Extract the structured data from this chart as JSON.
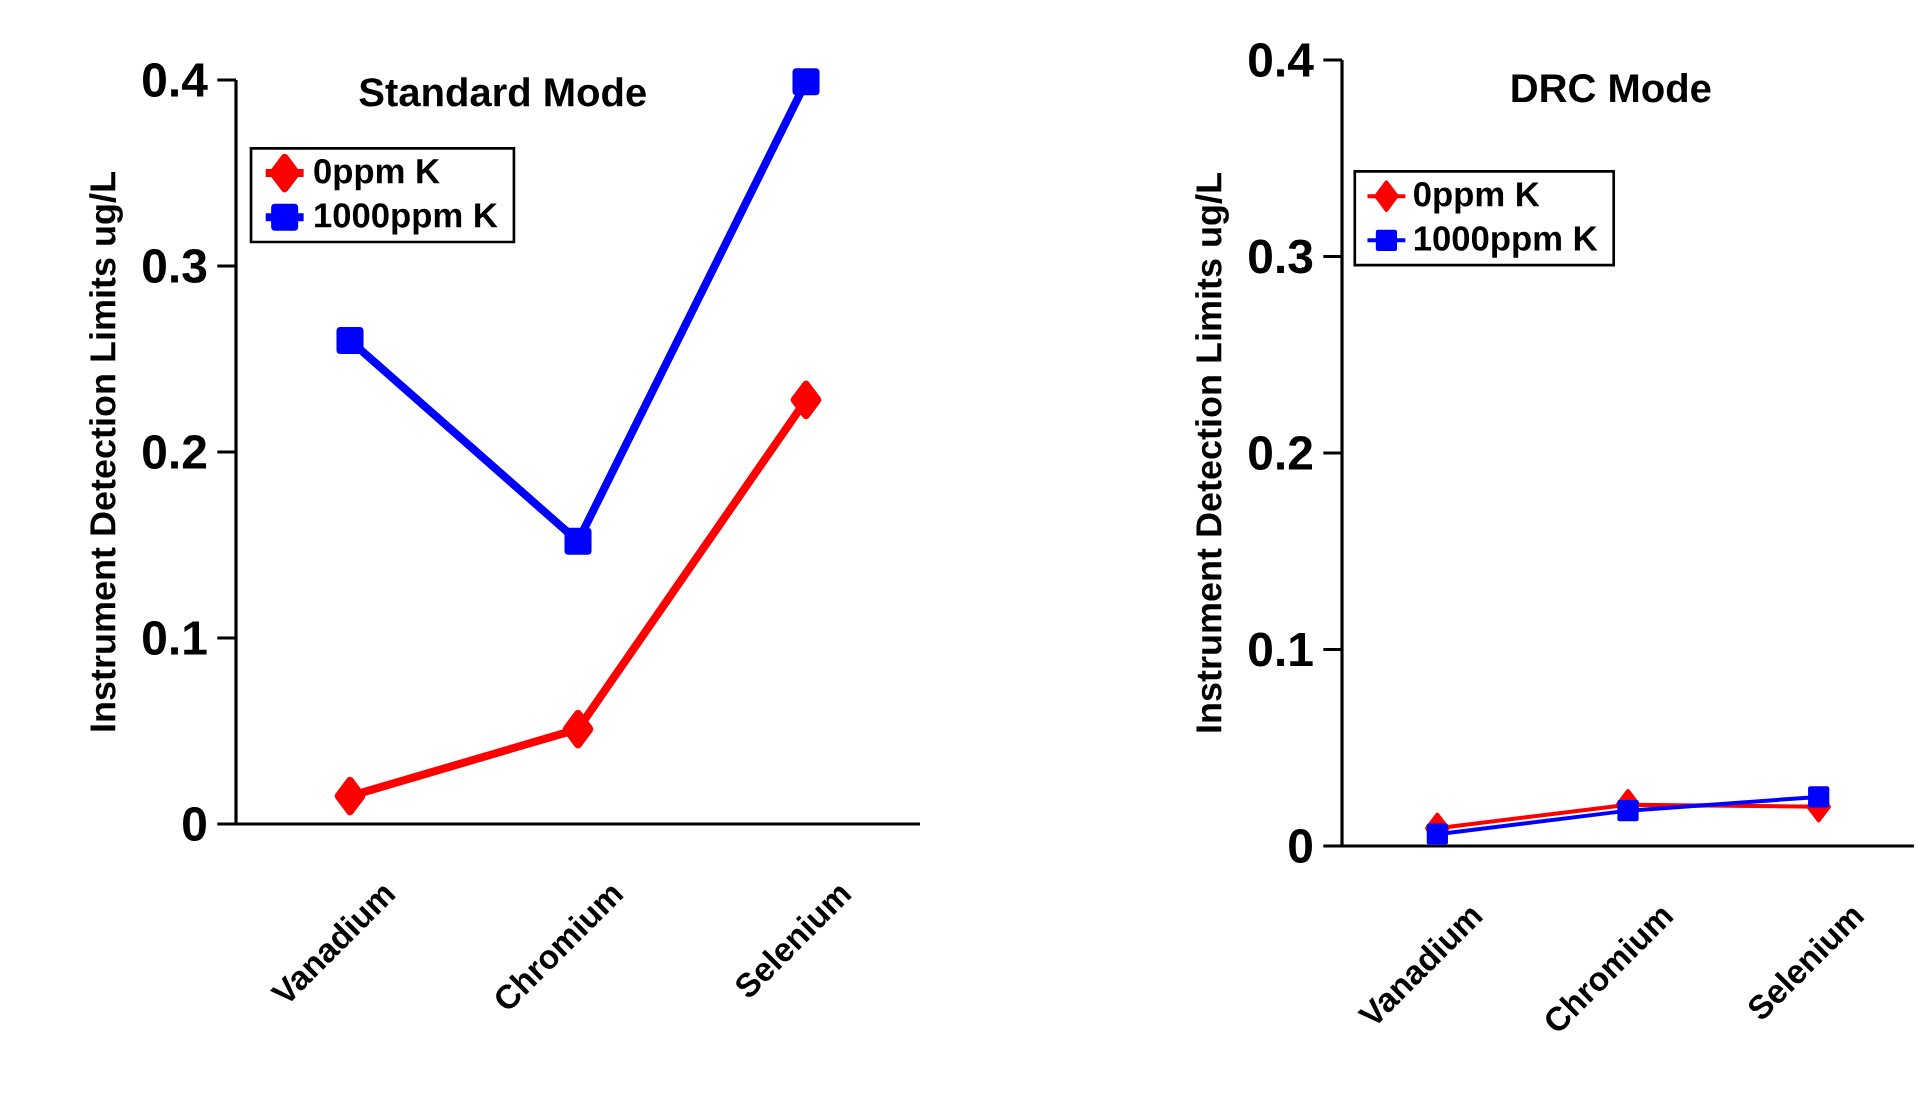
{
  "chart_data": [
    {
      "type": "line",
      "title": "Standard Mode",
      "ylabel": "Instrument Detection Limits ug/L",
      "categories": [
        "Vanadium",
        "Chromium",
        "Selenium"
      ],
      "series": [
        {
          "name": "0ppm K",
          "color": "#ff0000",
          "marker": "diamond",
          "values": [
            0.015,
            0.051,
            0.228
          ]
        },
        {
          "name": "1000ppm K",
          "color": "#0000ff",
          "marker": "square",
          "values": [
            0.26,
            0.152,
            0.399
          ]
        }
      ],
      "ylim": [
        0,
        0.4
      ],
      "yticks": [
        0,
        0.1,
        0.2,
        0.3,
        0.4
      ],
      "legend": "top left"
    },
    {
      "type": "line",
      "title": "DRC Mode",
      "ylabel": "Instrument Detection Limits ug/L",
      "categories": [
        "Vanadium",
        "Chromium",
        "Selenium"
      ],
      "series": [
        {
          "name": "0ppm K",
          "color": "#ff0000",
          "marker": "diamond",
          "values": [
            0.009,
            0.021,
            0.02
          ]
        },
        {
          "name": "1000ppm K",
          "color": "#0000ff",
          "marker": "square",
          "values": [
            0.006,
            0.018,
            0.025
          ]
        }
      ],
      "ylim": [
        0,
        0.4
      ],
      "yticks": [
        0,
        0.1,
        0.2,
        0.3,
        0.4
      ],
      "legend": "top left"
    }
  ]
}
